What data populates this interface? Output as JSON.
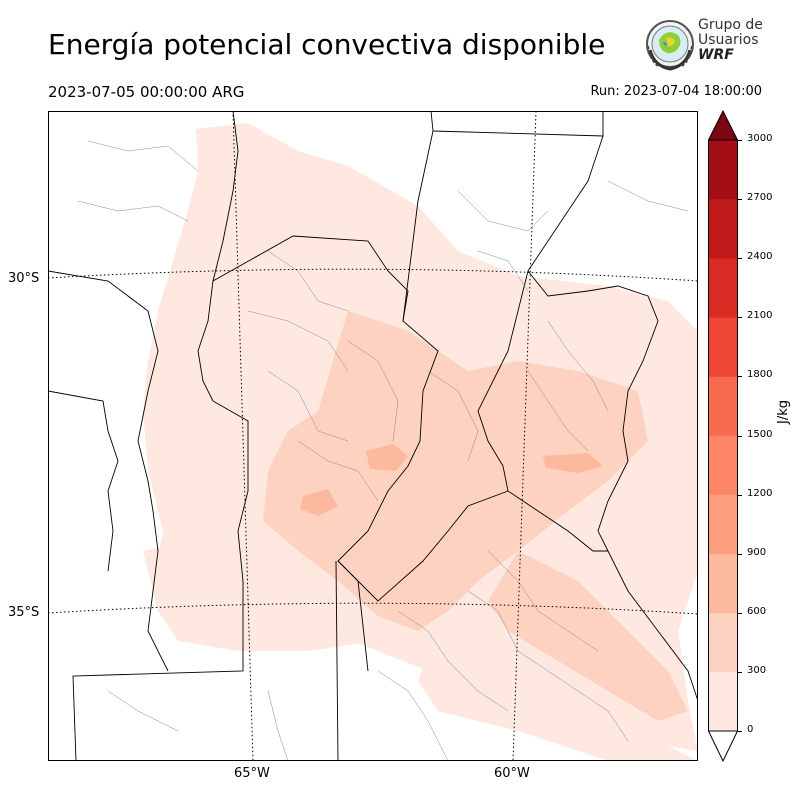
{
  "header": {
    "title": "Energía potencial convectiva disponible",
    "valid_time": "2023-07-05 00:00:00 ARG",
    "run_time": "Run: 2023-07-04 18:00:00"
  },
  "logo": {
    "line1": "Grupo de",
    "line2": "Usuarios",
    "line3": "WRF"
  },
  "map": {
    "latitude_labels": [
      "30°S",
      "35°S"
    ],
    "longitude_labels": [
      "65°W",
      "60°W"
    ]
  },
  "colorbar": {
    "unit": "J/kg",
    "ticks": [
      "0",
      "300",
      "600",
      "900",
      "1200",
      "1500",
      "1800",
      "2100",
      "2400",
      "2700",
      "3000"
    ],
    "colors": [
      "#fee8df",
      "#fdd2c0",
      "#fcb99d",
      "#fc9f7e",
      "#fb8566",
      "#f76a4e",
      "#ef4535",
      "#d92a24",
      "#bf1a1c",
      "#a40f16",
      "#7a0711"
    ]
  }
}
